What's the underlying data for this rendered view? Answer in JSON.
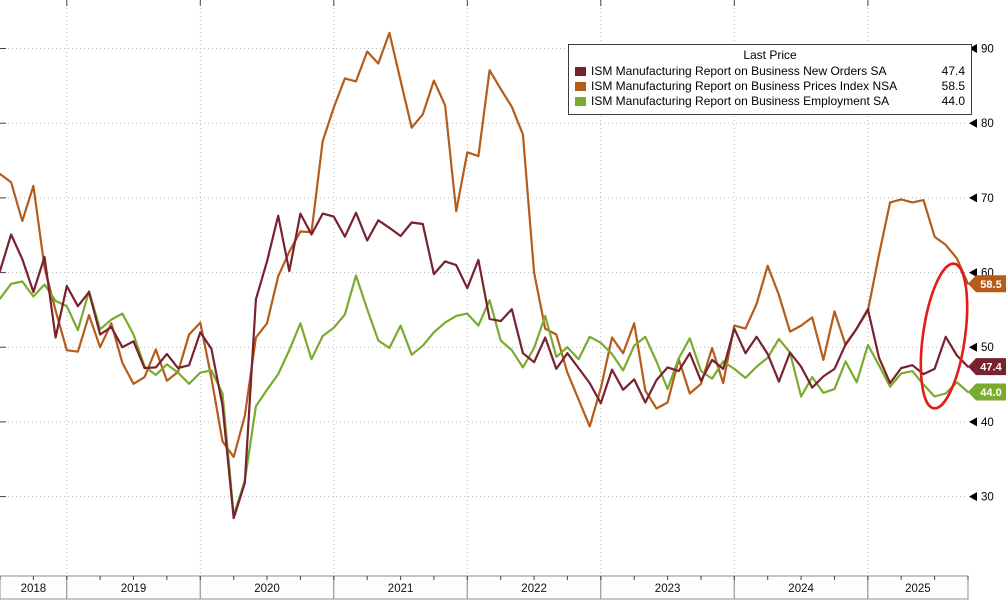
{
  "chart_data": {
    "type": "line",
    "frequency": "monthly",
    "x_start": "2018-07",
    "x_end": "2025-10",
    "grid": "dotted",
    "ylim": [
      19.5,
      96.5
    ],
    "yticks": [
      30,
      40,
      50,
      60,
      70,
      80,
      90
    ],
    "year_labels": [
      "2018",
      "2019",
      "2020",
      "2021",
      "2022",
      "2023",
      "2024",
      "2025"
    ],
    "draw_order": [
      1,
      2,
      0
    ],
    "legend": {
      "title": "Last Price",
      "position": "top-right",
      "items": [
        {
          "label": "ISM Manufacturing Report on Business New Orders SA",
          "value": "47.4"
        },
        {
          "label": "ISM Manufacturing Report on Business Prices Index NSA",
          "value": "58.5"
        },
        {
          "label": "ISM Manufacturing Report on Business Employment SA",
          "value": "44.0"
        }
      ]
    },
    "series": [
      {
        "id": "new-orders",
        "name": "ISM Manufacturing Report on Business New Orders SA",
        "color": "#77222f",
        "last_price": "47.4",
        "values": [
          60.2,
          65.1,
          61.8,
          57.4,
          62.1,
          51.3,
          58.2,
          55.5,
          57.4,
          51.7,
          52.7,
          50.0,
          50.8,
          47.2,
          47.3,
          49.1,
          47.2,
          47.6,
          52.0,
          49.8,
          42.2,
          27.1,
          31.8,
          56.4,
          61.5,
          67.6,
          60.2,
          67.9,
          65.1,
          67.9,
          67.5,
          64.8,
          68.0,
          64.3,
          67.0,
          66.0,
          64.9,
          66.7,
          66.5,
          59.8,
          61.5,
          61.0,
          57.9,
          61.7,
          53.8,
          53.5,
          55.1,
          49.2,
          48.0,
          51.3,
          47.1,
          49.2,
          47.2,
          45.2,
          42.5,
          47.0,
          44.3,
          45.7,
          42.6,
          45.6,
          47.3,
          46.8,
          49.2,
          45.5,
          48.3,
          47.1,
          52.5,
          49.2,
          51.4,
          49.1,
          45.4,
          49.3,
          47.4,
          44.6,
          46.1,
          47.1,
          50.4,
          52.5,
          55.1,
          48.6,
          45.2,
          47.2,
          47.6,
          46.4,
          47.1,
          51.4,
          48.9,
          47.4
        ]
      },
      {
        "id": "prices",
        "name": "ISM Manufacturing Report on Business Prices Index NSA",
        "color": "#b55c1a",
        "last_price": "58.5",
        "values": [
          73.2,
          72.1,
          66.9,
          71.6,
          60.7,
          54.9,
          49.6,
          49.4,
          54.3,
          50.0,
          53.2,
          47.9,
          45.1,
          46.0,
          49.7,
          45.5,
          46.7,
          51.7,
          53.3,
          45.9,
          37.4,
          35.3,
          40.8,
          51.3,
          53.2,
          59.5,
          62.8,
          65.5,
          65.4,
          77.6,
          82.1,
          86.0,
          85.6,
          89.6,
          88.0,
          92.1,
          85.7,
          79.4,
          81.2,
          85.7,
          82.4,
          68.2,
          76.1,
          75.6,
          87.1,
          84.6,
          82.2,
          78.5,
          60.0,
          52.5,
          51.7,
          46.6,
          43.0,
          39.4,
          44.5,
          51.3,
          49.2,
          53.2,
          44.2,
          41.8,
          42.6,
          48.4,
          43.8,
          45.1,
          49.9,
          45.2,
          52.9,
          52.5,
          55.8,
          60.9,
          57.0,
          52.1,
          52.9,
          54.0,
          48.3,
          54.8,
          50.3,
          52.5,
          54.9,
          62.4,
          69.4,
          69.8,
          69.4,
          69.7,
          64.8,
          63.7,
          61.9,
          58.5
        ]
      },
      {
        "id": "employment",
        "name": "ISM Manufacturing Report on Business Employment SA",
        "color": "#7aab2e",
        "last_price": "44.0",
        "values": [
          56.5,
          58.5,
          58.8,
          56.8,
          58.4,
          56.2,
          55.5,
          52.3,
          57.5,
          52.4,
          53.7,
          54.5,
          51.7,
          47.4,
          46.3,
          47.7,
          46.6,
          45.1,
          46.6,
          46.9,
          43.8,
          27.5,
          32.1,
          42.1,
          44.3,
          46.4,
          49.6,
          53.2,
          48.4,
          51.5,
          52.6,
          54.4,
          59.6,
          55.1,
          50.9,
          49.9,
          52.9,
          49.0,
          50.2,
          52.0,
          53.3,
          54.2,
          54.5,
          52.9,
          56.3,
          50.9,
          49.6,
          47.3,
          49.9,
          54.2,
          48.7,
          50.0,
          48.4,
          51.4,
          50.6,
          49.1,
          46.9,
          50.2,
          51.4,
          48.1,
          44.4,
          48.5,
          51.2,
          46.8,
          45.8,
          48.1,
          47.1,
          45.9,
          47.4,
          48.6,
          51.1,
          49.3,
          43.4,
          46.0,
          43.9,
          44.4,
          48.1,
          45.3,
          50.3,
          47.6,
          44.7,
          46.5,
          46.8,
          45.0,
          43.4,
          43.8,
          45.3,
          44.0
        ]
      }
    ],
    "annotation": {
      "type": "ellipse",
      "color": "#e41c17",
      "center_value": 51.5,
      "note": "red ellipse highlighting latest values of all three series"
    }
  }
}
